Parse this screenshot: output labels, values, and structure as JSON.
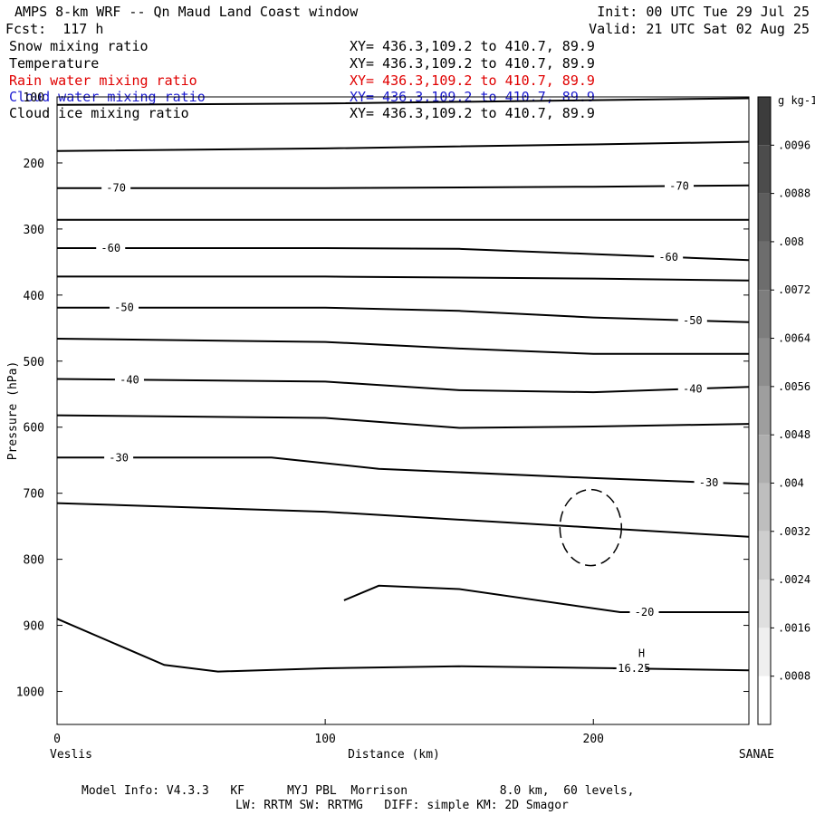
{
  "header": {
    "title": "AMPS 8-km WRF -- Qn Maud Land Coast window",
    "fcst": "Fcst:  117 h",
    "init": "Init: 00 UTC Tue 29 Jul 25",
    "valid": "Valid: 21 UTC Sat 02 Aug 25"
  },
  "fields": [
    {
      "name": "Snow mixing ratio",
      "xy": "XY= 436.3,109.2 to 410.7, 89.9",
      "color": "#000000"
    },
    {
      "name": "Temperature",
      "xy": "XY= 436.3,109.2 to 410.7, 89.9",
      "color": "#000000"
    },
    {
      "name": "Rain water mixing ratio",
      "xy": "XY= 436.3,109.2 to 410.7, 89.9",
      "color": "#ff0000"
    },
    {
      "name": "Cloud water mixing ratio",
      "xy": "XY= 436.3,109.2 to 410.7, 89.9",
      "color": "#0000ff"
    },
    {
      "name": "Cloud ice mixing ratio",
      "xy": "XY= 436.3,109.2 to 410.7, 89.9",
      "color": "#000000"
    }
  ],
  "footer": {
    "line1": "Model Info: V4.3.3   KF      MYJ PBL  Morrison             8.0 km,  60 levels,",
    "line2": "LW: RRTM SW: RRTMG   DIFF: simple KM: 2D Smagor"
  },
  "chart_data": {
    "type": "line",
    "xlabel": "Distance (km)",
    "ylabel": "Pressure (hPa)",
    "xlim": [
      0,
      258
    ],
    "ylim": [
      1050,
      100
    ],
    "x_ticks": [
      "0",
      "100",
      "200"
    ],
    "y_ticks": [
      "100",
      "200",
      "300",
      "400",
      "500",
      "600",
      "700",
      "800",
      "900",
      "1000"
    ],
    "left_location": "Veslis",
    "right_location": "SANAE",
    "colorbar": {
      "unit": "g kg-1",
      "labels": [
        ".0096",
        ".0088",
        ".008",
        ".0072",
        ".0064",
        ".0056",
        ".0048",
        ".004",
        ".0032",
        ".0024",
        ".0016",
        ".0008"
      ]
    },
    "series": [
      {
        "x": [
          0,
          100,
          200,
          258
        ],
        "y": [
          112,
          110,
          105,
          102
        ]
      },
      {
        "x": [
          0,
          100,
          200,
          258
        ],
        "y": [
          182,
          178,
          172,
          168
        ]
      },
      {
        "label": "-70",
        "x": [
          0,
          100,
          200,
          258
        ],
        "y": [
          238,
          238,
          236,
          234
        ]
      },
      {
        "x": [
          0,
          100,
          200,
          258
        ],
        "y": [
          286,
          286,
          286,
          286
        ]
      },
      {
        "label": "-60",
        "x": [
          0,
          100,
          150,
          200,
          258
        ],
        "y": [
          329,
          329,
          330,
          338,
          347
        ]
      },
      {
        "x": [
          0,
          100,
          200,
          258
        ],
        "y": [
          372,
          372,
          375,
          378
        ]
      },
      {
        "label": "-50",
        "x": [
          0,
          100,
          150,
          200,
          258
        ],
        "y": [
          419,
          419,
          424,
          434,
          441
        ]
      },
      {
        "x": [
          0,
          100,
          150,
          200,
          258
        ],
        "y": [
          466,
          471,
          481,
          489,
          489
        ]
      },
      {
        "label": "-40",
        "x": [
          0,
          100,
          150,
          200,
          258
        ],
        "y": [
          527,
          531,
          544,
          547,
          539
        ]
      },
      {
        "x": [
          0,
          100,
          150,
          200,
          258
        ],
        "y": [
          582,
          586,
          601,
          599,
          595
        ]
      },
      {
        "label": "-30",
        "x": [
          0,
          80,
          120,
          200,
          258
        ],
        "y": [
          646,
          646,
          663,
          677,
          686
        ]
      },
      {
        "x": [
          0,
          100,
          200,
          258
        ],
        "y": [
          715,
          728,
          752,
          766
        ]
      },
      {
        "label": "-20",
        "x": [
          107,
          120,
          150,
          210,
          258
        ],
        "y": [
          862,
          840,
          845,
          880,
          880
        ]
      },
      {
        "label": "-16.25",
        "x": [
          0,
          40,
          60,
          100,
          150,
          210,
          258
        ],
        "y": [
          890,
          960,
          970,
          965,
          962,
          965,
          968
        ]
      }
    ],
    "annotations": [
      "H"
    ]
  }
}
